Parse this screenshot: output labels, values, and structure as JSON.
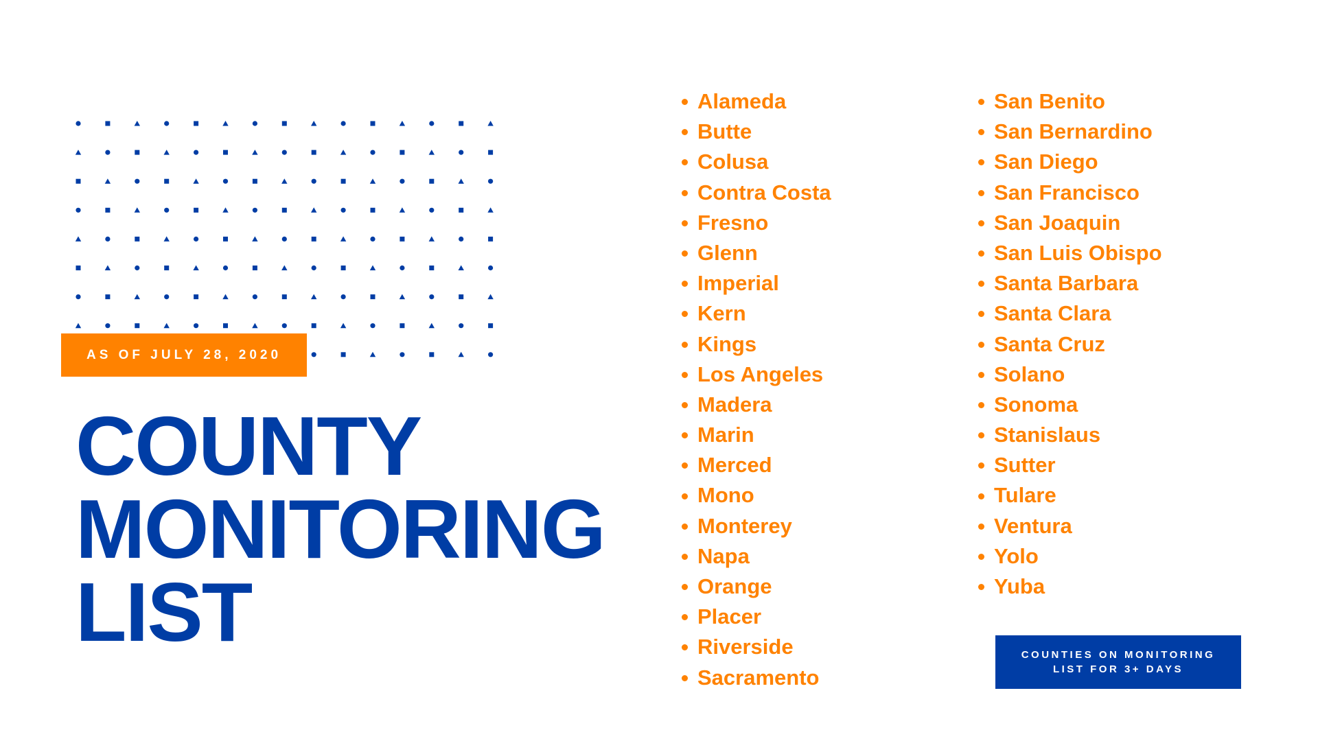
{
  "colors": {
    "blue": "#003DA5",
    "orange": "#FF8200"
  },
  "badge": {
    "text": "AS OF JULY 28, 2020"
  },
  "title": {
    "lines": [
      "COUNTY",
      "MONITORING",
      "LIST"
    ]
  },
  "pattern": {
    "shapes": [
      "circle",
      "square",
      "triangle"
    ]
  },
  "counties": {
    "column1": [
      "Alameda",
      "Butte",
      "Colusa",
      "Contra Costa",
      "Fresno",
      "Glenn",
      "Imperial",
      "Kern",
      "Kings",
      "Los Angeles",
      "Madera",
      "Marin",
      "Merced",
      "Mono",
      "Monterey",
      "Napa",
      "Orange",
      "Placer",
      "Riverside",
      "Sacramento"
    ],
    "column2": [
      "San Benito",
      "San Bernardino",
      "San Diego",
      "San Francisco",
      "San Joaquin",
      "San Luis Obispo",
      "Santa Barbara",
      "Santa Clara",
      "Santa Cruz",
      "Solano",
      "Sonoma",
      "Stanislaus",
      "Sutter",
      "Tulare",
      "Ventura",
      "Yolo",
      "Yuba"
    ]
  },
  "note": {
    "line1": "COUNTIES ON MONITORING",
    "line2": "LIST FOR 3+ DAYS"
  }
}
